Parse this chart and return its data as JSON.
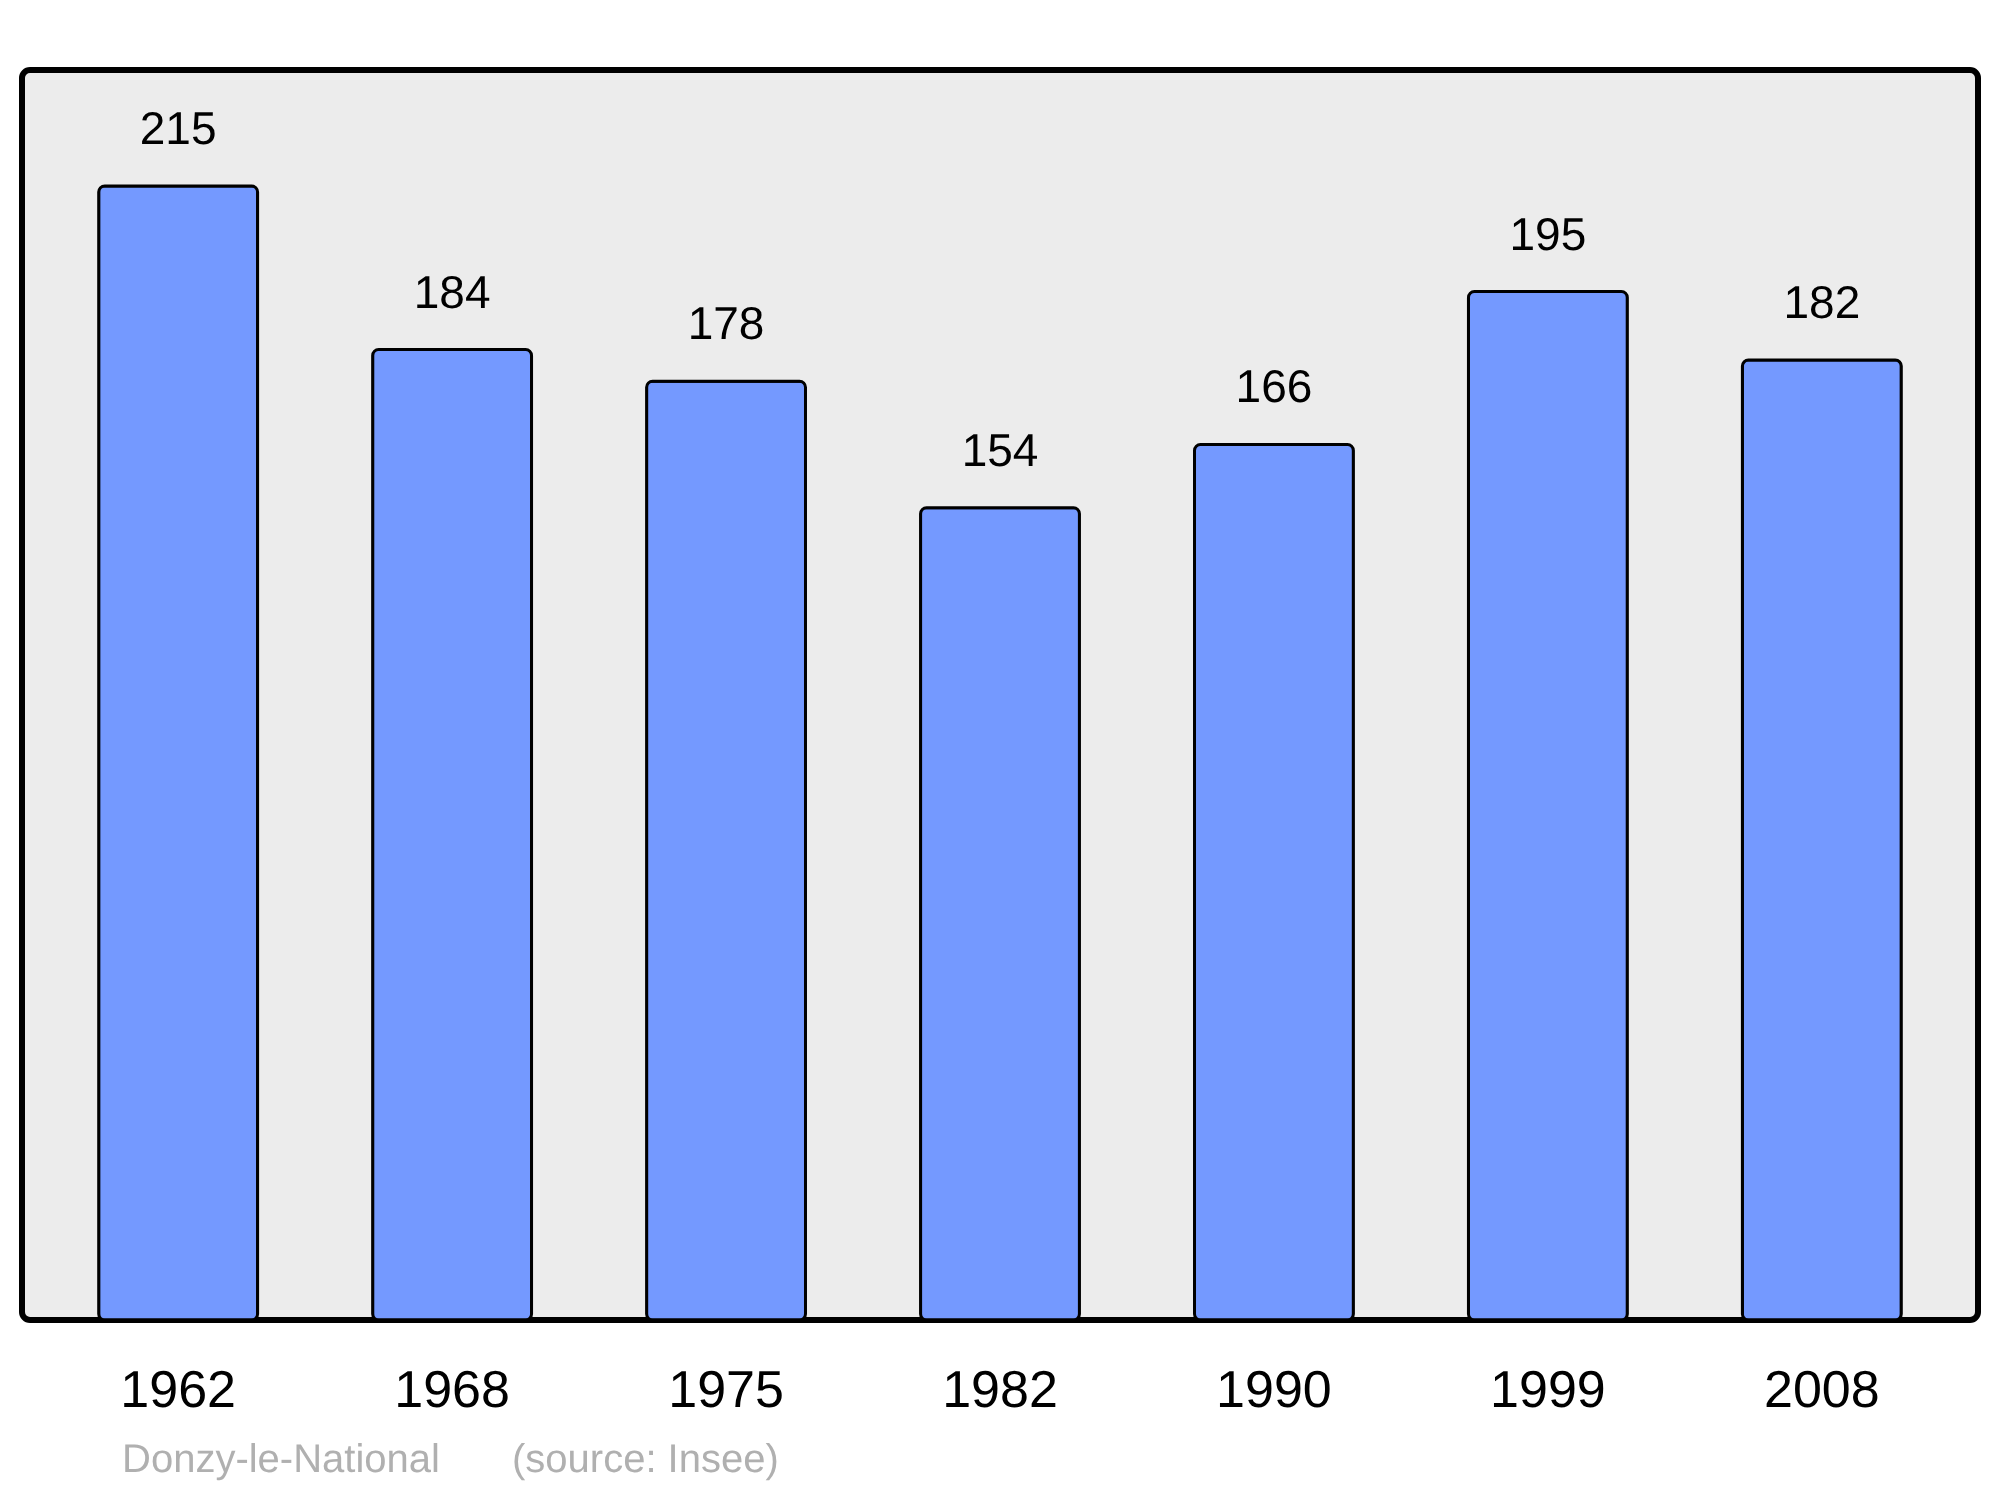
{
  "chart_data": {
    "type": "bar",
    "categories": [
      "1962",
      "1968",
      "1975",
      "1982",
      "1990",
      "1999",
      "2008"
    ],
    "values": [
      215,
      184,
      178,
      154,
      166,
      195,
      182
    ],
    "color": "#7499ff",
    "ylim": [
      0,
      237
    ],
    "tick_labels": "x",
    "data_labels": true,
    "annotations": [
      "Donzy-le-National",
      "(source: Insee)"
    ]
  }
}
